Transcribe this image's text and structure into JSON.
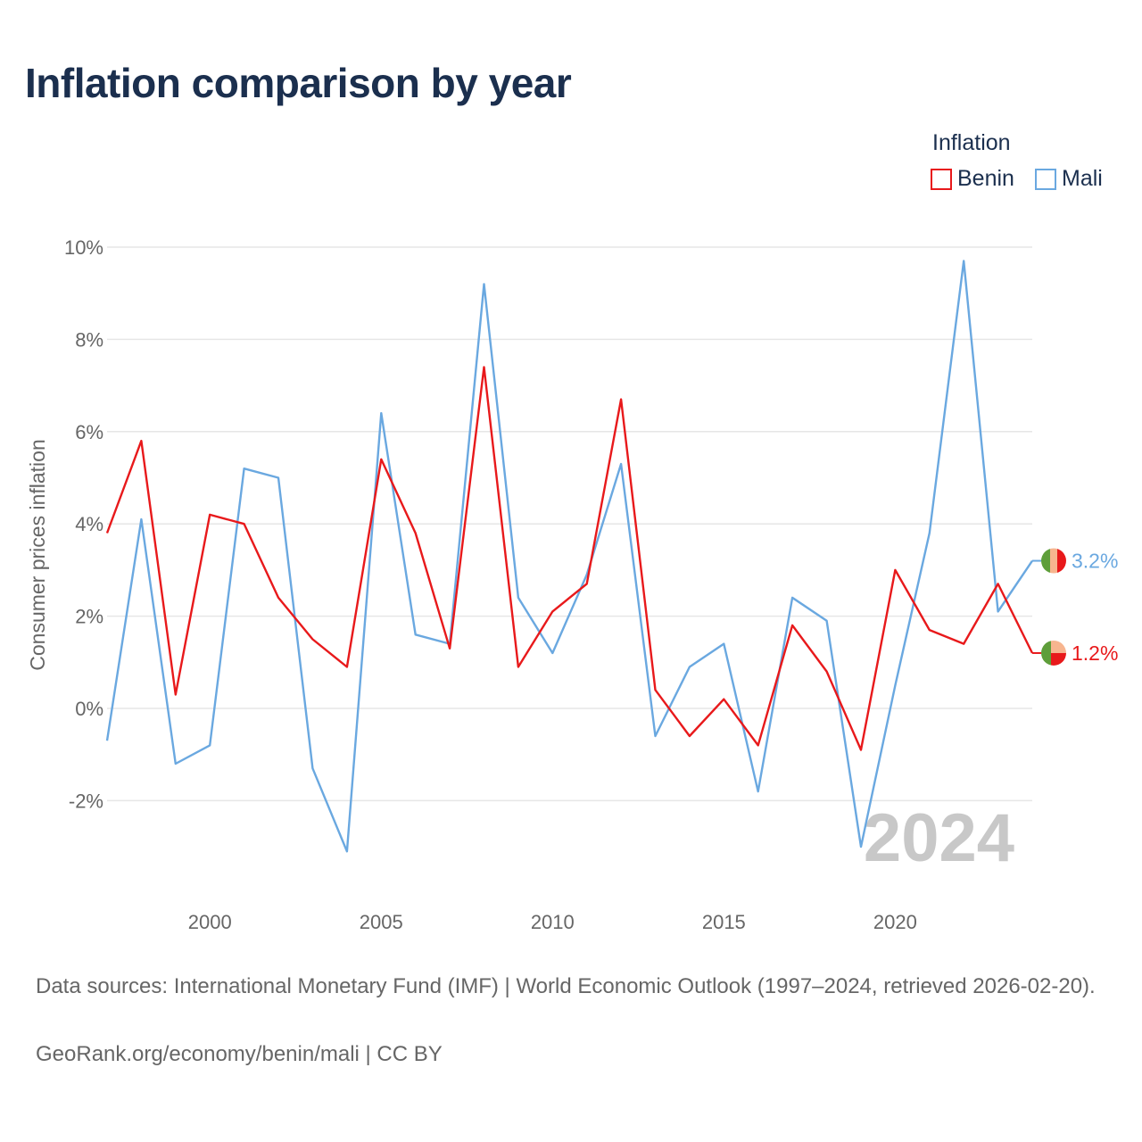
{
  "title": "Inflation comparison by year",
  "legend": {
    "title": "Inflation",
    "items": [
      {
        "name": "Benin",
        "color": "#e8191b"
      },
      {
        "name": "Mali",
        "color": "#6aa8e0"
      }
    ]
  },
  "footer": {
    "sources": "Data sources: International Monetary Fund (IMF) | World Economic Outlook (1997–2024, retrieved 2026-02-20).",
    "credit": "GeoRank.org/economy/benin/mali | CC BY"
  },
  "chart_data": {
    "type": "line",
    "title": "Inflation comparison by year",
    "xlabel": "",
    "ylabel": "Consumer prices inflation",
    "xlim": [
      1997,
      2024
    ],
    "ylim": [
      -4,
      10
    ],
    "x_ticks": [
      2000,
      2005,
      2010,
      2015,
      2020
    ],
    "x_tick_labels": [
      "2000",
      "2005",
      "2010",
      "2015",
      "2020"
    ],
    "y_ticks": [
      -2,
      0,
      2,
      4,
      6,
      8,
      10
    ],
    "y_tick_labels": [
      "-2%",
      "0%",
      "2%",
      "4%",
      "6%",
      "8%",
      "10%"
    ],
    "grid": true,
    "legend_position": "top-right",
    "year_watermark": "2024",
    "x": [
      1997,
      1998,
      1999,
      2000,
      2001,
      2002,
      2003,
      2004,
      2005,
      2006,
      2007,
      2008,
      2009,
      2010,
      2011,
      2012,
      2013,
      2014,
      2015,
      2016,
      2017,
      2018,
      2019,
      2020,
      2021,
      2022,
      2023,
      2024
    ],
    "series": [
      {
        "name": "Benin",
        "color": "#e8191b",
        "values": [
          3.8,
          5.8,
          0.3,
          4.2,
          4.0,
          2.4,
          1.5,
          0.9,
          5.4,
          3.8,
          1.3,
          7.4,
          0.9,
          2.1,
          2.7,
          6.7,
          0.4,
          -0.6,
          0.2,
          -0.8,
          1.8,
          0.8,
          -0.9,
          3.0,
          1.7,
          1.4,
          2.7,
          1.2
        ],
        "end_label": "1.2%"
      },
      {
        "name": "Mali",
        "color": "#6aa8e0",
        "values": [
          -0.7,
          4.1,
          -1.2,
          -0.8,
          5.2,
          5.0,
          -1.3,
          -3.1,
          6.4,
          1.6,
          1.4,
          9.2,
          2.4,
          1.2,
          2.9,
          5.3,
          -0.6,
          0.9,
          1.4,
          -1.8,
          2.4,
          1.9,
          -3.0,
          0.5,
          3.8,
          9.7,
          2.1,
          3.2
        ],
        "end_label": "3.2%"
      }
    ]
  }
}
